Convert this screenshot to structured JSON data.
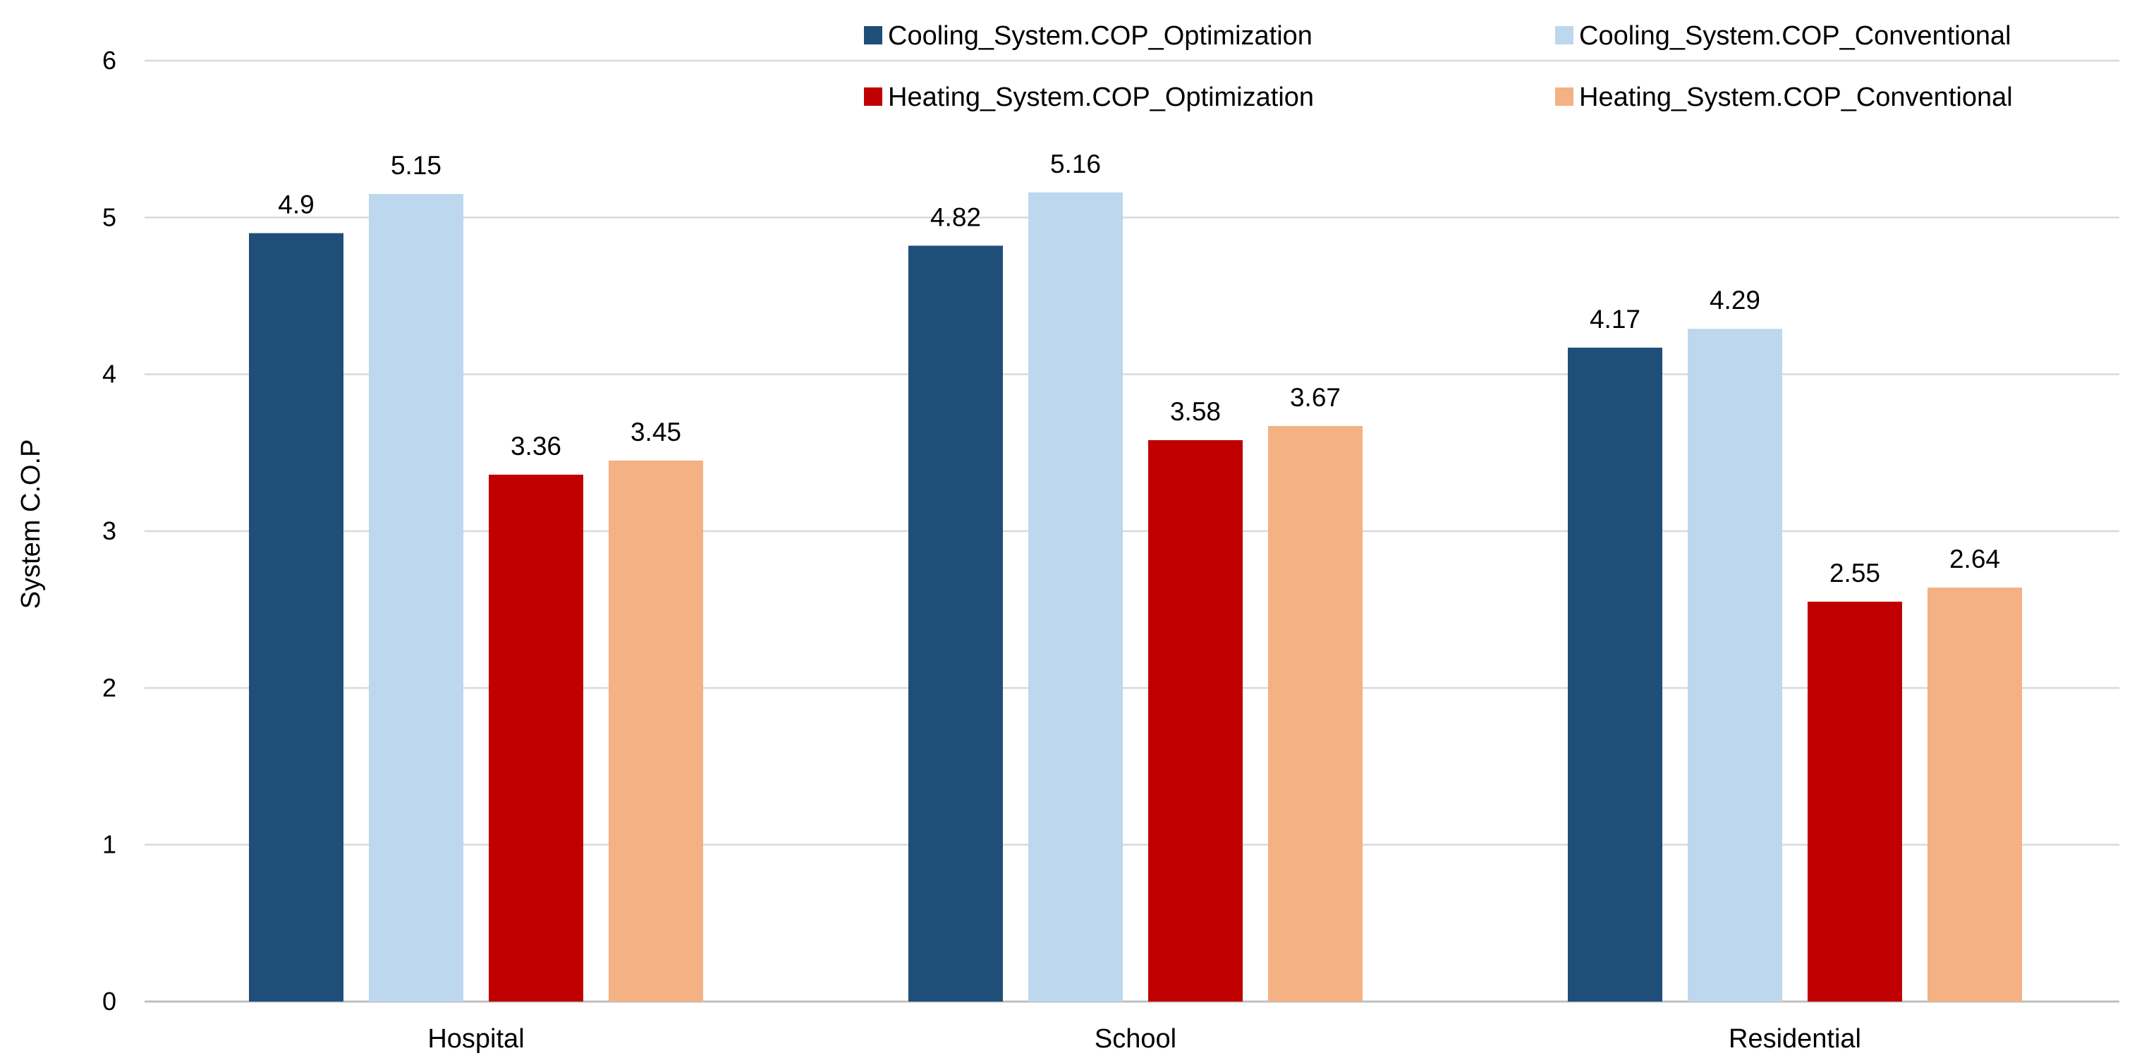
{
  "chart_data": {
    "type": "bar",
    "title": "",
    "xlabel": "",
    "ylabel": "System C.O.P",
    "ylim": [
      0,
      6
    ],
    "yticks": [
      "0",
      "1",
      "2",
      "3",
      "4",
      "5",
      "6"
    ],
    "grid": true,
    "legend_position": "top-right",
    "categories": [
      "Hospital",
      "School",
      "Residential"
    ],
    "series": [
      {
        "name": "Cooling_System.COP_Optimization",
        "color": "#1f4e79",
        "values": [
          4.9,
          4.82,
          4.17
        ],
        "labels": [
          "4.9",
          "4.82",
          "4.17"
        ]
      },
      {
        "name": "Cooling_System.COP_Conventional",
        "color": "#bdd7ee",
        "values": [
          5.15,
          5.16,
          4.29
        ],
        "labels": [
          "5.15",
          "5.16",
          "4.29"
        ]
      },
      {
        "name": "Heating_System.COP_Optimization",
        "color": "#c00000",
        "values": [
          3.36,
          3.58,
          2.55
        ],
        "labels": [
          "3.36",
          "3.58",
          "2.55"
        ]
      },
      {
        "name": "Heating_System.COP_Conventional",
        "color": "#f4b183",
        "values": [
          3.45,
          3.67,
          2.64
        ],
        "labels": [
          "3.45",
          "3.67",
          "2.64"
        ]
      }
    ],
    "colors": {
      "gridline": "#d9d9d9",
      "axis": "#bfbfbf",
      "text": "#000000"
    }
  }
}
